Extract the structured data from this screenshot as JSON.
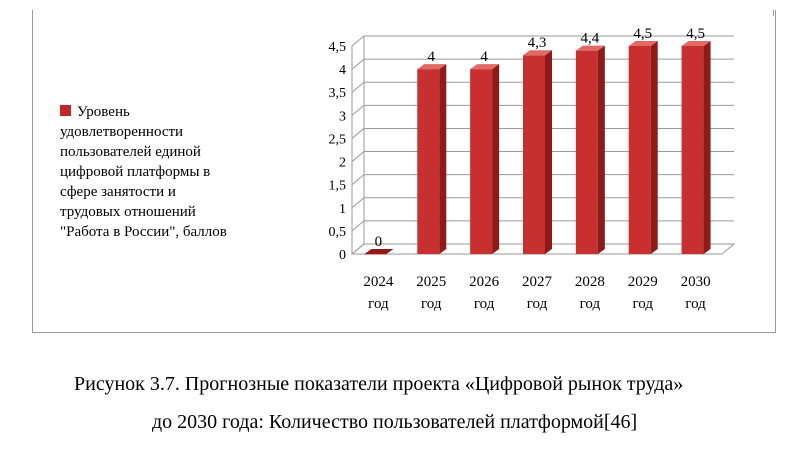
{
  "legend": {
    "label": "Уровень\nудовлетворенности\nпользователей единой\nцифровой платформы в\nсфере занятости и\nтрудовых отношений\n\"Работа в России\", баллов"
  },
  "colors": {
    "bar_front": "#c8302f",
    "bar_side": "#8f1a1a",
    "bar_top": "#e06a66",
    "grid": "#9a9a9a"
  },
  "caption": {
    "line1": "Рисунок 3.7. Прогнозные показатели проекта «Цифровой рынок труда»",
    "line2": "до 2030 года: Количество пользователей платформой[46]"
  },
  "chart_data": {
    "type": "bar",
    "categories": [
      "2024 год",
      "2025 год",
      "2026 год",
      "2027 год",
      "2028 год",
      "2029 год",
      "2030 год"
    ],
    "category_lines": [
      [
        "2024",
        "год"
      ],
      [
        "2025",
        "год"
      ],
      [
        "2026",
        "год"
      ],
      [
        "2027",
        "год"
      ],
      [
        "2028",
        "год"
      ],
      [
        "2029",
        "год"
      ],
      [
        "2030",
        "год"
      ]
    ],
    "values": [
      0,
      4,
      4,
      4.3,
      4.4,
      4.5,
      4.5
    ],
    "data_labels": [
      "0",
      "4",
      "4",
      "4,3",
      "4,4",
      "4,5",
      "4,5"
    ],
    "y_ticks": [
      "0",
      "0,5",
      "1",
      "1,5",
      "2",
      "2,5",
      "3",
      "3,5",
      "4",
      "4,5"
    ],
    "y_tick_values": [
      0,
      0.5,
      1,
      1.5,
      2,
      2.5,
      3,
      3.5,
      4,
      4.5
    ],
    "ylim": [
      0,
      4.5
    ],
    "grid": true,
    "legend_position": "left",
    "style": "3d-bar"
  }
}
